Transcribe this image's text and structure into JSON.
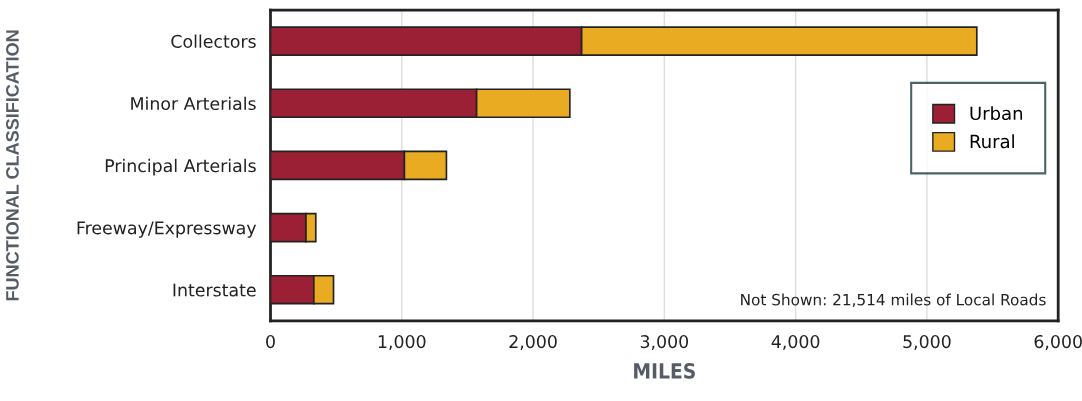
{
  "chart_data": {
    "type": "bar",
    "orientation": "horizontal",
    "stacked": true,
    "xlabel": "MILES",
    "ylabel": "FUNCTIONAL CLASSIFICATION",
    "categories": [
      "Collectors",
      "Minor Arterials",
      "Principal Arterials",
      "Freeway/Expressway",
      "Interstate"
    ],
    "series": [
      {
        "name": "Urban",
        "color": "#9b2035",
        "values": [
          2370,
          1570,
          1020,
          270,
          330
        ]
      },
      {
        "name": "Rural",
        "color": "#e9ab22",
        "values": [
          3010,
          710,
          320,
          75,
          150
        ]
      }
    ],
    "xlim": [
      0,
      6000
    ],
    "xticks": [
      0,
      {
        "value": 1000,
        "label": "1,000"
      },
      {
        "value": 2000,
        "label": "2,000"
      },
      {
        "value": 3000,
        "label": "3,000"
      },
      {
        "value": 4000,
        "label": "4,000"
      },
      {
        "value": 5000,
        "label": "5,000"
      },
      {
        "value": 6000,
        "label": "6,000"
      }
    ],
    "grid": "x",
    "legend": "right",
    "annotations": [
      "Not Shown: 21,514 miles of Local Roads"
    ]
  }
}
